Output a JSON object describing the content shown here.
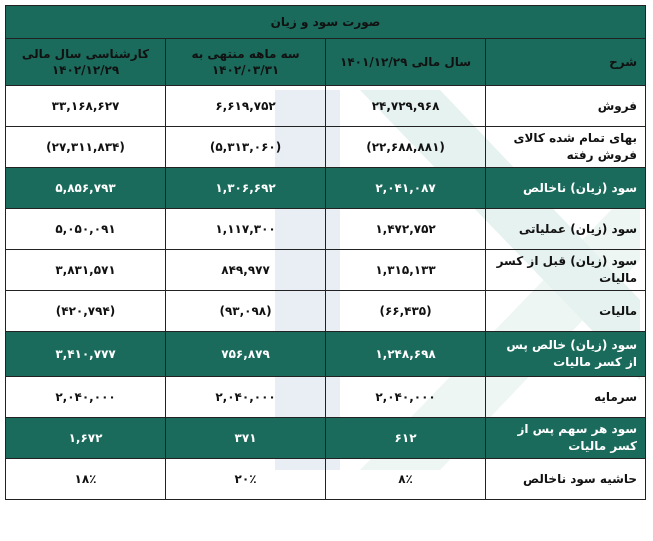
{
  "title": "صورت سود و زیان",
  "columns": {
    "label": "شرح",
    "col1": "سال مالی ۱۴۰۱/۱۲/۲۹",
    "col2_line1": "سه ماهه منتهی به",
    "col2_line2": "۱۴۰۲/۰۳/۳۱",
    "col3_line1": "کارشناسی سال مالی",
    "col3_line2": "۱۴۰۲/۱۲/۲۹"
  },
  "rows": [
    {
      "label": "فروش",
      "v1": "۲۴,۷۲۹,۹۶۸",
      "v2": "۶,۶۱۹,۷۵۲",
      "v3": "۳۳,۱۶۸,۶۲۷"
    },
    {
      "label": "بهای تمام شده کالای فروش رفته",
      "v1": "(۲۲,۶۸۸,۸۸۱)",
      "v2": "(۵,۳۱۳,۰۶۰)",
      "v3": "(۲۷,۳۱۱,۸۳۴)"
    },
    {
      "label": "سود (زیان) ناخالص",
      "v1": "۲,۰۴۱,۰۸۷",
      "v2": "۱,۳۰۶,۶۹۲",
      "v3": "۵,۸۵۶,۷۹۳"
    },
    {
      "label": "سود (زیان) عملیاتی",
      "v1": "۱,۴۷۲,۷۵۲",
      "v2": "۱,۱۱۷,۳۰۰",
      "v3": "۵,۰۵۰,۰۹۱"
    },
    {
      "label": "سود (زیان) قبل از کسر مالیات",
      "v1": "۱,۳۱۵,۱۳۳",
      "v2": "۸۴۹,۹۷۷",
      "v3": "۳,۸۳۱,۵۷۱"
    },
    {
      "label": "مالیات",
      "v1": "(۶۶,۴۳۵)",
      "v2": "(۹۳,۰۹۸)",
      "v3": "(۴۲۰,۷۹۴)"
    },
    {
      "label": "سود (زیان) خالص پس از کسر مالیات",
      "v1": "۱,۲۴۸,۶۹۸",
      "v2": "۷۵۶,۸۷۹",
      "v3": "۳,۴۱۰,۷۷۷"
    },
    {
      "label": "سرمایه",
      "v1": "۲,۰۴۰,۰۰۰",
      "v2": "۲,۰۴۰,۰۰۰",
      "v3": "۲,۰۴۰,۰۰۰"
    },
    {
      "label": "سود هر سهم پس از کسر مالیات",
      "v1": "۶۱۲",
      "v2": "۳۷۱",
      "v3": "۱,۶۷۲"
    },
    {
      "label": "حاشیه سود ناخالص",
      "v1": "۸٪",
      "v2": "۲۰٪",
      "v3": "۱۸٪"
    }
  ],
  "colors": {
    "header_green": "#1a6b5c",
    "negative_red": "#d01818",
    "watermark_green": "#d7ece6",
    "watermark_blue": "#dde4ef"
  }
}
